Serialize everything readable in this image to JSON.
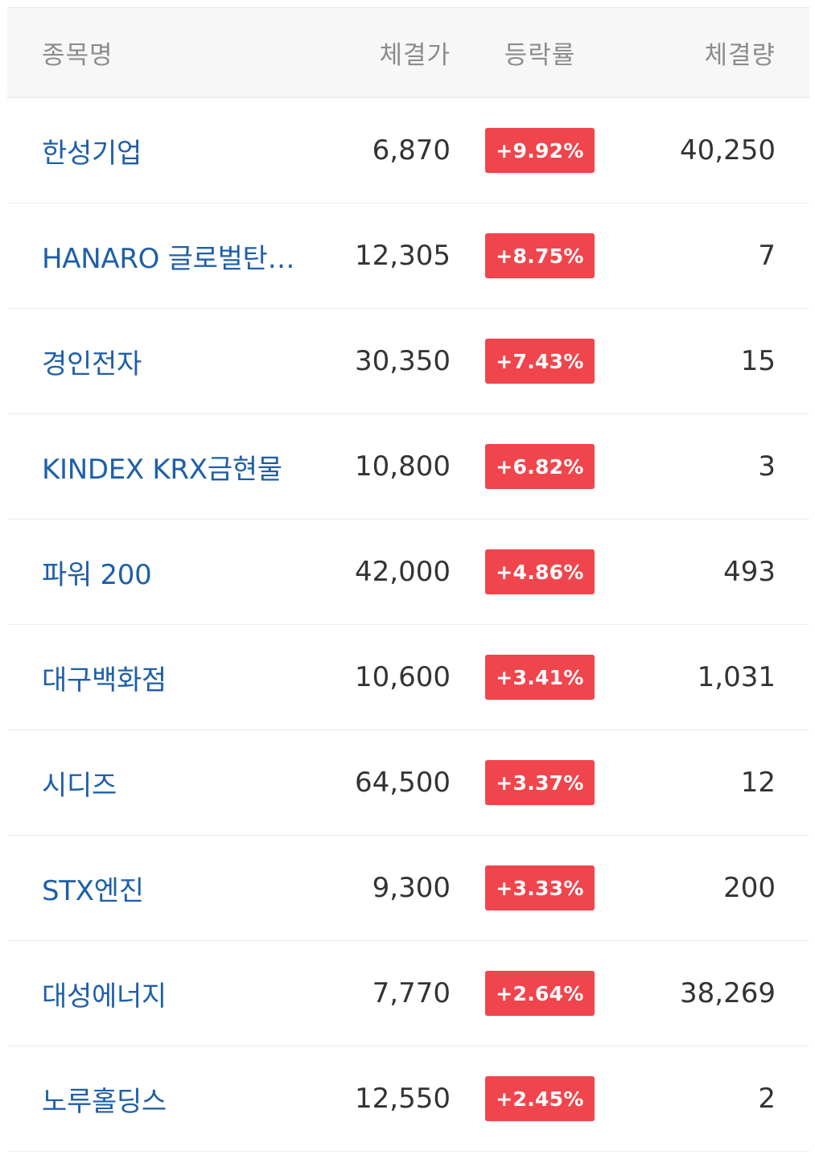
{
  "header": {
    "name": "종목명",
    "price": "체결가",
    "rate": "등락률",
    "volume": "체결량"
  },
  "colors": {
    "name_link": "#1f5fa8",
    "badge_up": "#f0454c",
    "header_bg": "#f7f7f7"
  },
  "rows": [
    {
      "name": "한성기업",
      "price": "6,870",
      "rate": "+9.92%",
      "volume": "40,250"
    },
    {
      "name": "HANARO 글로벌탄…",
      "price": "12,305",
      "rate": "+8.75%",
      "volume": "7"
    },
    {
      "name": "경인전자",
      "price": "30,350",
      "rate": "+7.43%",
      "volume": "15"
    },
    {
      "name": "KINDEX KRX금현물",
      "price": "10,800",
      "rate": "+6.82%",
      "volume": "3"
    },
    {
      "name": "파워 200",
      "price": "42,000",
      "rate": "+4.86%",
      "volume": "493"
    },
    {
      "name": "대구백화점",
      "price": "10,600",
      "rate": "+3.41%",
      "volume": "1,031"
    },
    {
      "name": "시디즈",
      "price": "64,500",
      "rate": "+3.37%",
      "volume": "12"
    },
    {
      "name": "STX엔진",
      "price": "9,300",
      "rate": "+3.33%",
      "volume": "200"
    },
    {
      "name": "대성에너지",
      "price": "7,770",
      "rate": "+2.64%",
      "volume": "38,269"
    },
    {
      "name": "노루홀딩스",
      "price": "12,550",
      "rate": "+2.45%",
      "volume": "2"
    }
  ]
}
